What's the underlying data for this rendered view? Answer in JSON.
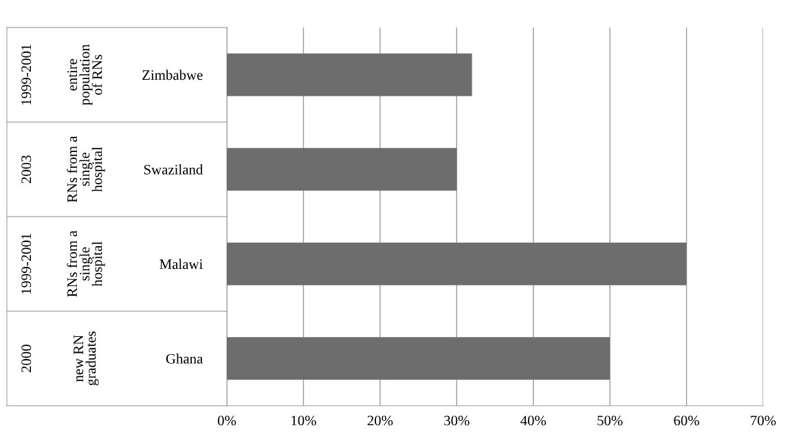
{
  "chart_data": {
    "type": "bar",
    "orientation": "horizontal",
    "categories": [
      "Zimbabwe",
      "Swaziland",
      "Malawi",
      "Ghana"
    ],
    "values": [
      0.32,
      0.3,
      0.6,
      0.5
    ],
    "color": "#6d6d6d",
    "xlim": [
      0,
      0.7
    ],
    "xticks": [
      {
        "value": 0,
        "label": "0%"
      },
      {
        "value": 0.1,
        "label": "10%"
      },
      {
        "value": 0.2,
        "label": "20%"
      },
      {
        "value": 0.3,
        "label": "30%"
      },
      {
        "value": 0.4,
        "label": "40%"
      },
      {
        "value": 0.5,
        "label": "50%"
      },
      {
        "value": 0.6,
        "label": "60%"
      },
      {
        "value": 0.7,
        "label": "70%"
      }
    ],
    "grid": "x",
    "annotations": [
      "1999-2001",
      "entire\npopulation\nof RNs",
      "2003",
      "RNs from a\nsingle\nhospital",
      "1999-2001",
      "RNs from a\nsingle\nhospital",
      "2000",
      "new RN\ngraduates"
    ]
  }
}
